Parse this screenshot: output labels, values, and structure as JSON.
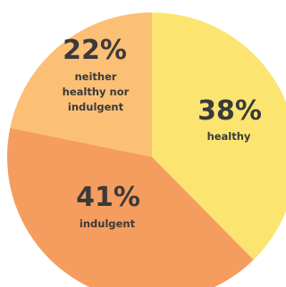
{
  "chart_data": {
    "type": "pie",
    "start_angle_deg": 0,
    "direction": "clockwise",
    "slices": [
      {
        "value": 38,
        "value_label": "38%",
        "label_lines": [
          "healthy"
        ],
        "color": "#fbe46f"
      },
      {
        "value": 41,
        "value_label": "41%",
        "label_lines": [
          "indulgent"
        ],
        "color": "#f59d5e"
      },
      {
        "value": 22,
        "value_label": "22%",
        "label_lines": [
          "neither",
          "healthy nor",
          "indulgent"
        ],
        "color": "#fbbf76"
      }
    ]
  }
}
